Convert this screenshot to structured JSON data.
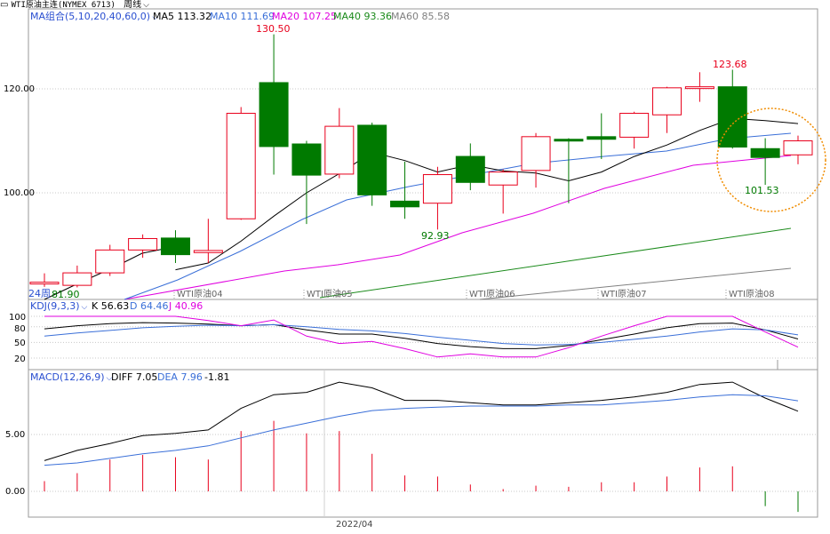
{
  "header": {
    "instrument": "WTI原油主连(NYMEX 6713)",
    "period": "周线",
    "dropdown_icon": "chevron-down-icon"
  },
  "main_panel": {
    "ma_group_label": "MA组合(5,10,20,40,60,0)",
    "ma5_label": "MA5 113.32",
    "ma10_label": "MA10 111.69",
    "ma20_label": "MA20 107.25",
    "ma40_label": "MA40 93.36",
    "ma60_label": "MA60 85.58",
    "y_ticks": [
      "120.00",
      "100.00"
    ],
    "peak_label": "130.50",
    "peak2_label": "123.68",
    "low_label_1": "81.90",
    "low_label_2": "92.93",
    "low_label_3": "101.53",
    "period_marker": "24周",
    "contract_labels": [
      "WTI原油04",
      "WTI原油05",
      "WTI原油06",
      "WTI原油07",
      "WTI原油08"
    ]
  },
  "kdj_panel": {
    "label": "KDJ(9,3,3)",
    "k_label": "K 56.63",
    "d_label": "D 64.46",
    "j_label": "J 40.96",
    "y_ticks": [
      "100",
      "80",
      "50",
      "20"
    ]
  },
  "macd_panel": {
    "label": "MACD(12,26,9)",
    "diff_label": "DIFF 7.05",
    "dea_label": "DEA 7.96",
    "macd_value": "-1.81",
    "y_ticks": [
      "5.00",
      "0.00"
    ]
  },
  "x_axis": {
    "date_label": "2022/04"
  },
  "colors": {
    "up": "#e8001c",
    "down": "#007a00",
    "ma5": "#000000",
    "ma10": "#3a6fd8",
    "ma20": "#e000e0",
    "ma40": "#1a8a1a",
    "ma60": "#808080",
    "label_blue": "#2a4fd0",
    "highlight_circle": "#f08c00"
  },
  "chart_data": {
    "type": "candlestick",
    "ylim": [
      78,
      132
    ],
    "candles": [
      {
        "o": 82.5,
        "c": 82.8,
        "h": 84.5,
        "l": 81.9
      },
      {
        "o": 82.2,
        "c": 84.6,
        "h": 86.0,
        "l": 81.8
      },
      {
        "o": 84.6,
        "c": 89.0,
        "h": 90.0,
        "l": 84.0
      },
      {
        "o": 89.0,
        "c": 91.2,
        "h": 92.0,
        "l": 87.5
      },
      {
        "o": 91.3,
        "c": 88.1,
        "h": 92.8,
        "l": 86.5
      },
      {
        "o": 88.5,
        "c": 88.9,
        "h": 95.0,
        "l": 86.5
      },
      {
        "o": 95.0,
        "c": 115.3,
        "h": 116.5,
        "l": 94.8
      },
      {
        "o": 121.2,
        "c": 108.9,
        "h": 130.5,
        "l": 103.5
      },
      {
        "o": 109.4,
        "c": 103.4,
        "h": 110.0,
        "l": 94.0
      },
      {
        "o": 103.6,
        "c": 112.8,
        "h": 116.3,
        "l": 102.8
      },
      {
        "o": 113.0,
        "c": 99.6,
        "h": 113.5,
        "l": 97.5
      },
      {
        "o": 98.4,
        "c": 97.3,
        "h": 106.0,
        "l": 95.0
      },
      {
        "o": 98.0,
        "c": 103.5,
        "h": 105.0,
        "l": 92.93
      },
      {
        "o": 107.0,
        "c": 102.0,
        "h": 109.5,
        "l": 100.5
      },
      {
        "o": 101.5,
        "c": 104.0,
        "h": 104.5,
        "l": 96.0
      },
      {
        "o": 104.3,
        "c": 110.8,
        "h": 111.5,
        "l": 101.0
      },
      {
        "o": 110.3,
        "c": 110.1,
        "h": 110.5,
        "l": 98.0
      },
      {
        "o": 110.8,
        "c": 110.3,
        "h": 115.3,
        "l": 106.5
      },
      {
        "o": 110.7,
        "c": 115.3,
        "h": 115.6,
        "l": 108.5
      },
      {
        "o": 115.0,
        "c": 120.2,
        "h": 120.4,
        "l": 111.5
      },
      {
        "o": 120.4,
        "c": 120.4,
        "h": 123.2,
        "l": 117.5
      },
      {
        "o": 120.4,
        "c": 108.8,
        "h": 123.68,
        "l": 108.5
      },
      {
        "o": 108.5,
        "c": 106.8,
        "h": 110.5,
        "l": 101.53
      },
      {
        "o": 107.3,
        "c": 110.0,
        "h": 111.0,
        "l": 105.5
      }
    ],
    "ma5": [
      null,
      null,
      null,
      null,
      85.2,
      86.5,
      90.7,
      95.5,
      100.0,
      103.7,
      107.8,
      106.2,
      104.0,
      105.4,
      104.2,
      103.8,
      102.3,
      104.0,
      107.0,
      109.2,
      112.0,
      114.3,
      113.9,
      113.32
    ],
    "ma10": [
      null,
      null,
      null,
      null,
      null,
      null,
      null,
      null,
      null,
      89.0,
      93.0,
      96.4,
      97.5,
      100.0,
      101.8,
      103.2,
      104.0,
      104.5,
      105.5,
      106.2,
      107.2,
      107.9,
      108.6,
      111.69
    ],
    "ma20": [
      null,
      null,
      null,
      null,
      null,
      null,
      null,
      null,
      null,
      null,
      null,
      null,
      null,
      null,
      null,
      null,
      null,
      null,
      null,
      null,
      101.5,
      103.0,
      104.0,
      107.25
    ],
    "ma40": [
      null,
      null,
      null,
      null,
      null,
      null,
      null,
      null,
      null,
      null,
      null,
      null,
      null,
      null,
      null,
      null,
      null,
      null,
      null,
      null,
      null,
      null,
      null,
      93.36
    ],
    "ma60": [
      null,
      null,
      null,
      null,
      null,
      null,
      null,
      null,
      null,
      null,
      null,
      null,
      null,
      null,
      null,
      null,
      null,
      null,
      null,
      null,
      null,
      null,
      null,
      85.58
    ],
    "kdj": {
      "k": [
        76,
        82,
        86,
        88,
        87,
        85,
        82,
        84,
        74,
        66,
        66,
        58,
        48,
        42,
        38,
        38,
        44,
        55,
        66,
        78,
        86,
        87,
        74,
        56.63
      ],
      "d": [
        62,
        68,
        73,
        78,
        81,
        83,
        82,
        84,
        80,
        75,
        72,
        67,
        60,
        54,
        48,
        45,
        46,
        50,
        56,
        62,
        70,
        76,
        74,
        64.46
      ],
      "j": [
        110,
        112,
        113,
        112,
        104,
        92,
        82,
        93,
        62,
        48,
        52,
        38,
        22,
        28,
        22,
        22,
        40,
        62,
        82,
        108,
        116,
        116,
        70,
        40.96
      ]
    },
    "macd": {
      "diff": [
        2.7,
        3.6,
        4.2,
        4.9,
        5.1,
        5.4,
        7.3,
        8.5,
        8.7,
        9.6,
        9.1,
        8.0,
        8.0,
        7.8,
        7.6,
        7.6,
        7.8,
        8.0,
        8.3,
        8.7,
        9.4,
        9.6,
        8.2,
        7.05
      ],
      "dea": [
        2.3,
        2.5,
        2.9,
        3.3,
        3.6,
        4.0,
        4.7,
        5.4,
        6.0,
        6.6,
        7.1,
        7.3,
        7.4,
        7.5,
        7.5,
        7.5,
        7.6,
        7.6,
        7.8,
        8.0,
        8.3,
        8.5,
        8.4,
        7.96
      ],
      "hist": [
        0.9,
        1.6,
        2.8,
        3.2,
        3.0,
        2.8,
        5.3,
        6.2,
        5.1,
        5.3,
        3.3,
        1.4,
        1.3,
        0.6,
        0.2,
        0.5,
        0.4,
        0.8,
        0.8,
        1.3,
        2.1,
        2.2,
        -1.3,
        -1.81
      ]
    }
  }
}
